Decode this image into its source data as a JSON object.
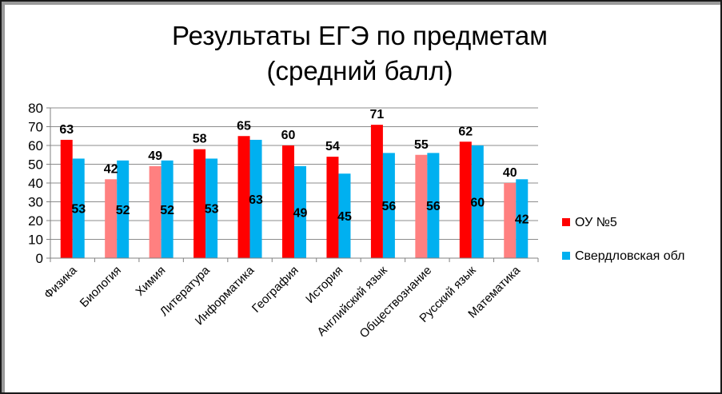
{
  "chart_data": {
    "type": "bar",
    "title_lines": [
      "Результаты ЕГЭ по предметам",
      "(средний балл)"
    ],
    "categories": [
      "Физика",
      "Биология",
      "Химия",
      "Литература",
      "Информатика",
      "География",
      "История",
      "Английский язык",
      "Обществознание",
      "Русский язык",
      "Математика"
    ],
    "series": [
      {
        "name": "ОУ №5",
        "values": [
          63,
          42,
          49,
          58,
          65,
          60,
          54,
          71,
          55,
          62,
          40
        ],
        "colors": [
          "#ff0000",
          "#ff8080",
          "#ff8080",
          "#ff0000",
          "#ff0000",
          "#ff0000",
          "#ff0000",
          "#ff0000",
          "#ff8080",
          "#ff0000",
          "#ff8080"
        ],
        "label_position": "outside-end"
      },
      {
        "name": "Свердловская обл",
        "values": [
          53,
          52,
          52,
          53,
          63,
          49,
          45,
          56,
          56,
          60,
          42
        ],
        "color": "#00b0f0",
        "label_position": "center"
      }
    ],
    "ylim": [
      0,
      80
    ],
    "yticks": [
      0,
      10,
      20,
      30,
      40,
      50,
      60,
      70,
      80
    ],
    "grid": true,
    "legend_position": "right"
  }
}
